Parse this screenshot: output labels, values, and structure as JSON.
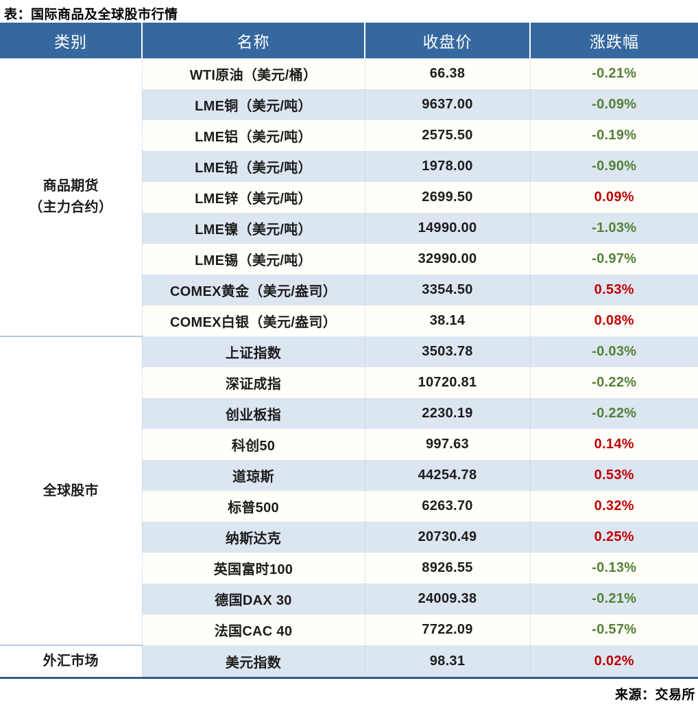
{
  "colors": {
    "header_bg": "#35689E",
    "row_base": "#FFFEF8",
    "row_alt": "#DCE6F1",
    "up": "#C00000",
    "down": "#538135",
    "bottom_line": "#2E5C8A",
    "section_divider": "#B7C9DB",
    "col_divider": "#C9CDD2"
  },
  "chart_data": {
    "type": "table",
    "title": "表：国际商品及全球股市行情",
    "source": "来源：交易所",
    "columns": [
      "类别",
      "名称",
      "收盘价",
      "涨跌幅"
    ],
    "sections": [
      {
        "category_lines": [
          "商品期货",
          "（主力合约）"
        ],
        "rows": [
          {
            "name": "WTI原油（美元/桶）",
            "close": "66.38",
            "change": "-0.21%"
          },
          {
            "name": "LME铜（美元/吨）",
            "close": "9637.00",
            "change": "-0.09%"
          },
          {
            "name": "LME铝（美元/吨）",
            "close": "2575.50",
            "change": "-0.19%"
          },
          {
            "name": "LME铅（美元/吨）",
            "close": "1978.00",
            "change": "-0.90%"
          },
          {
            "name": "LME锌（美元/吨）",
            "close": "2699.50",
            "change": "0.09%"
          },
          {
            "name": "LME镍（美元/吨）",
            "close": "14990.00",
            "change": "-1.03%"
          },
          {
            "name": "LME锡（美元/吨）",
            "close": "32990.00",
            "change": "-0.97%"
          },
          {
            "name": "COMEX黄金（美元/盎司）",
            "close": "3354.50",
            "change": "0.53%"
          },
          {
            "name": "COMEX白银（美元/盎司）",
            "close": "38.14",
            "change": "0.08%"
          }
        ]
      },
      {
        "category_lines": [
          "全球股市"
        ],
        "rows": [
          {
            "name": "上证指数",
            "close": "3503.78",
            "change": "-0.03%"
          },
          {
            "name": "深证成指",
            "close": "10720.81",
            "change": "-0.22%"
          },
          {
            "name": "创业板指",
            "close": "2230.19",
            "change": "-0.22%"
          },
          {
            "name": "科创50",
            "close": "997.63",
            "change": "0.14%"
          },
          {
            "name": "道琼斯",
            "close": "44254.78",
            "change": "0.53%"
          },
          {
            "name": "标普500",
            "close": "6263.70",
            "change": "0.32%"
          },
          {
            "name": "纳斯达克",
            "close": "20730.49",
            "change": "0.25%"
          },
          {
            "name": "英国富时100",
            "close": "8926.55",
            "change": "-0.13%"
          },
          {
            "name": "德国DAX 30",
            "close": "24009.38",
            "change": "-0.21%"
          },
          {
            "name": "法国CAC 40",
            "close": "7722.09",
            "change": "-0.57%"
          }
        ]
      },
      {
        "category_lines": [
          "外汇市场"
        ],
        "rows": [
          {
            "name": "美元指数",
            "close": "98.31",
            "change": "0.02%"
          }
        ]
      }
    ]
  }
}
